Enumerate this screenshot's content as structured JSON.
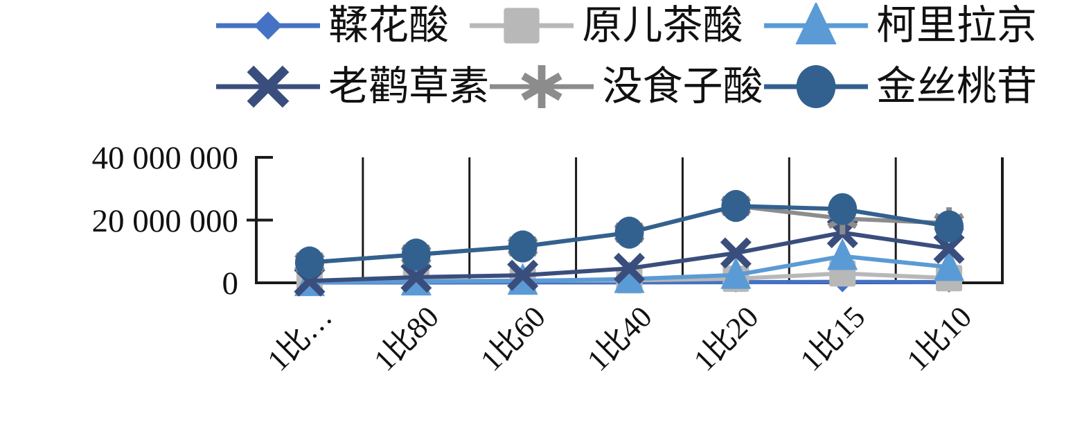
{
  "chart_data": {
    "type": "line",
    "title": "",
    "xlabel": "",
    "ylabel": "",
    "categories": [
      "1比…",
      "1比80",
      "1比60",
      "1比40",
      "1比20",
      "1比15",
      "1比10"
    ],
    "y_ticks": [
      "0",
      "20 000 000",
      "40 000 000"
    ],
    "ylim": [
      0,
      40000000
    ],
    "grid": "vertical category boundary gridlines, open top frame",
    "legend_position": "top, two rows",
    "axis_color": "#1a1a1a",
    "series": [
      {
        "name": "鞣花酸",
        "marker": "diamond",
        "color": "#4472C4",
        "values": [
          100000,
          100000,
          150000,
          150000,
          200000,
          300000,
          200000
        ]
      },
      {
        "name": "原儿茶酸",
        "marker": "square",
        "color": "#B8B8B8",
        "values": [
          500000,
          600000,
          700000,
          800000,
          1300000,
          3000000,
          1500000
        ]
      },
      {
        "name": "柯里拉京",
        "marker": "triangle",
        "color": "#5B9BD5",
        "values": [
          200000,
          400000,
          600000,
          1200000,
          2500000,
          8500000,
          5000000
        ]
      },
      {
        "name": "老鹳草素",
        "marker": "x",
        "color": "#3A4E7D",
        "values": [
          600000,
          1800000,
          2400000,
          4600000,
          9500000,
          16000000,
          11000000
        ]
      },
      {
        "name": "没食子酸",
        "marker": "asterisk",
        "color": "#8C8C8C",
        "values": [
          6500000,
          9000000,
          11600000,
          16000000,
          24500000,
          20500000,
          19000000
        ]
      },
      {
        "name": "金丝桃苷",
        "marker": "circle",
        "color": "#33618F",
        "values": [
          6500000,
          9000000,
          11600000,
          16000000,
          24500000,
          23500000,
          18000000
        ]
      }
    ]
  }
}
